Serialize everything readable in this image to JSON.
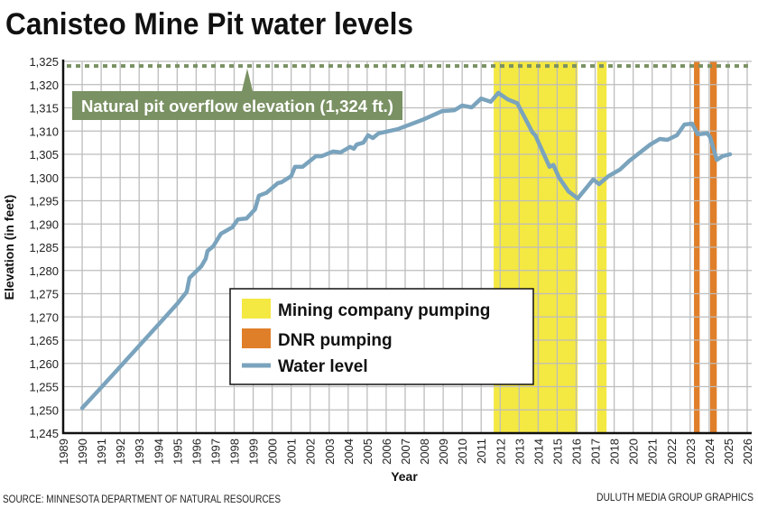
{
  "chart_data": {
    "type": "line",
    "title": "Canisteo Mine Pit water levels",
    "xlabel": "Year",
    "ylabel": "Elevation (in feet)",
    "ylim": [
      1245,
      1325
    ],
    "ytick_step": 5,
    "y_ticks": [
      "1,245",
      "1,250",
      "1,255",
      "1,260",
      "1,265",
      "1,270",
      "1,275",
      "1,280",
      "1,285",
      "1,290",
      "1,295",
      "1,300",
      "1,305",
      "1,310",
      "1,315",
      "1,320",
      "1,325"
    ],
    "x_ticks": [
      "1989",
      "1990",
      "1991",
      "1992",
      "1993",
      "1994",
      "1995",
      "1996",
      "1997",
      "1998",
      "1999",
      "2000",
      "2001",
      "2002",
      "2003",
      "2004",
      "2005",
      "2006",
      "2007",
      "2008",
      "2009",
      "2010",
      "2011",
      "2012",
      "2013",
      "2014",
      "2015",
      "2016",
      "2017",
      "2018",
      "2020",
      "2021",
      "2022",
      "2023",
      "2024",
      "2025",
      "2026"
    ],
    "grid": true,
    "legend_position": "center",
    "legend": [
      {
        "label": "Mining company pumping",
        "color": "#f4e842"
      },
      {
        "label": "DNR pumping",
        "color": "#e07f2a"
      },
      {
        "label": "Water level",
        "color": "#7aa3bd"
      }
    ],
    "reference_line": {
      "value": 1324,
      "label": "Natural pit overflow elevation (1,324 ft.)",
      "color": "#7a9163"
    },
    "bands": [
      {
        "type": "Mining company pumping",
        "start": 2011.66,
        "end": 2016.08,
        "color": "#f4e842"
      },
      {
        "type": "Mining company pumping",
        "start": 2017.1,
        "end": 2017.6,
        "color": "#f4e842"
      },
      {
        "type": "DNR pumping",
        "start": 2023.2,
        "end": 2023.5,
        "color": "#e07f2a"
      },
      {
        "type": "DNR pumping",
        "start": 2024.05,
        "end": 2024.4,
        "color": "#e07f2a"
      }
    ],
    "series": [
      {
        "name": "Water level",
        "color": "#7aa3bd",
        "points": [
          [
            1990.0,
            1250.4
          ],
          [
            1991,
            1254.8
          ],
          [
            1992,
            1259.3
          ],
          [
            1993,
            1263.8
          ],
          [
            1994,
            1268.3
          ],
          [
            1995,
            1272.8
          ],
          [
            1995.5,
            1275.4
          ],
          [
            1995.65,
            1278.4
          ],
          [
            1996.27,
            1280.9
          ],
          [
            1996.5,
            1282.5
          ],
          [
            1996.6,
            1284.2
          ],
          [
            1996.9,
            1285.2
          ],
          [
            1997.3,
            1287.9
          ],
          [
            1997.9,
            1289.3
          ],
          [
            1998.2,
            1291.0
          ],
          [
            1998.65,
            1291.2
          ],
          [
            1999.1,
            1293.2
          ],
          [
            1999.3,
            1296.1
          ],
          [
            1999.7,
            1296.7
          ],
          [
            2000.3,
            1298.8
          ],
          [
            2000.5,
            1299.0
          ],
          [
            2001.0,
            1300.3
          ],
          [
            2001.2,
            1302.3
          ],
          [
            2001.6,
            1302.3
          ],
          [
            2002.3,
            1304.6
          ],
          [
            2002.6,
            1304.6
          ],
          [
            2003.2,
            1305.6
          ],
          [
            2003.6,
            1305.4
          ],
          [
            2004.1,
            1306.6
          ],
          [
            2004.3,
            1306.2
          ],
          [
            2004.45,
            1307.1
          ],
          [
            2004.8,
            1307.5
          ],
          [
            2005.05,
            1309.1
          ],
          [
            2005.3,
            1308.5
          ],
          [
            2005.6,
            1309.5
          ],
          [
            2006.6,
            1310.4
          ],
          [
            2007.9,
            1312.4
          ],
          [
            2008.95,
            1314.3
          ],
          [
            2009.6,
            1314.5
          ],
          [
            2010.0,
            1315.5
          ],
          [
            2010.5,
            1315.1
          ],
          [
            2011.0,
            1317.0
          ],
          [
            2011.5,
            1316.3
          ],
          [
            2011.9,
            1318.2
          ],
          [
            2012.4,
            1316.8
          ],
          [
            2012.9,
            1316.0
          ],
          [
            2013.7,
            1309.7
          ],
          [
            2013.85,
            1309.1
          ],
          [
            2014.6,
            1302.3
          ],
          [
            2014.8,
            1302.7
          ],
          [
            2015.1,
            1300.0
          ],
          [
            2015.6,
            1297.0
          ],
          [
            2016.08,
            1295.5
          ],
          [
            2016.9,
            1299.6
          ],
          [
            2017.2,
            1298.6
          ],
          [
            2017.7,
            1300.3
          ],
          [
            2018.6,
            1301.7
          ],
          [
            2019.6,
            1303.6
          ],
          [
            2020.9,
            1307.1
          ],
          [
            2021.4,
            1308.3
          ],
          [
            2021.8,
            1308.1
          ],
          [
            2022.3,
            1309.1
          ],
          [
            2022.7,
            1311.4
          ],
          [
            2023.1,
            1311.6
          ],
          [
            2023.4,
            1309.3
          ],
          [
            2023.9,
            1309.5
          ],
          [
            2024.05,
            1308.7
          ],
          [
            2024.4,
            1303.8
          ],
          [
            2024.7,
            1304.6
          ],
          [
            2025.1,
            1305.0
          ]
        ]
      }
    ]
  },
  "footer": {
    "source": "SOURCE: MINNESOTA DEPARTMENT OF NATURAL RESOURCES",
    "credit": "DULUTH MEDIA GROUP GRAPHICS"
  }
}
